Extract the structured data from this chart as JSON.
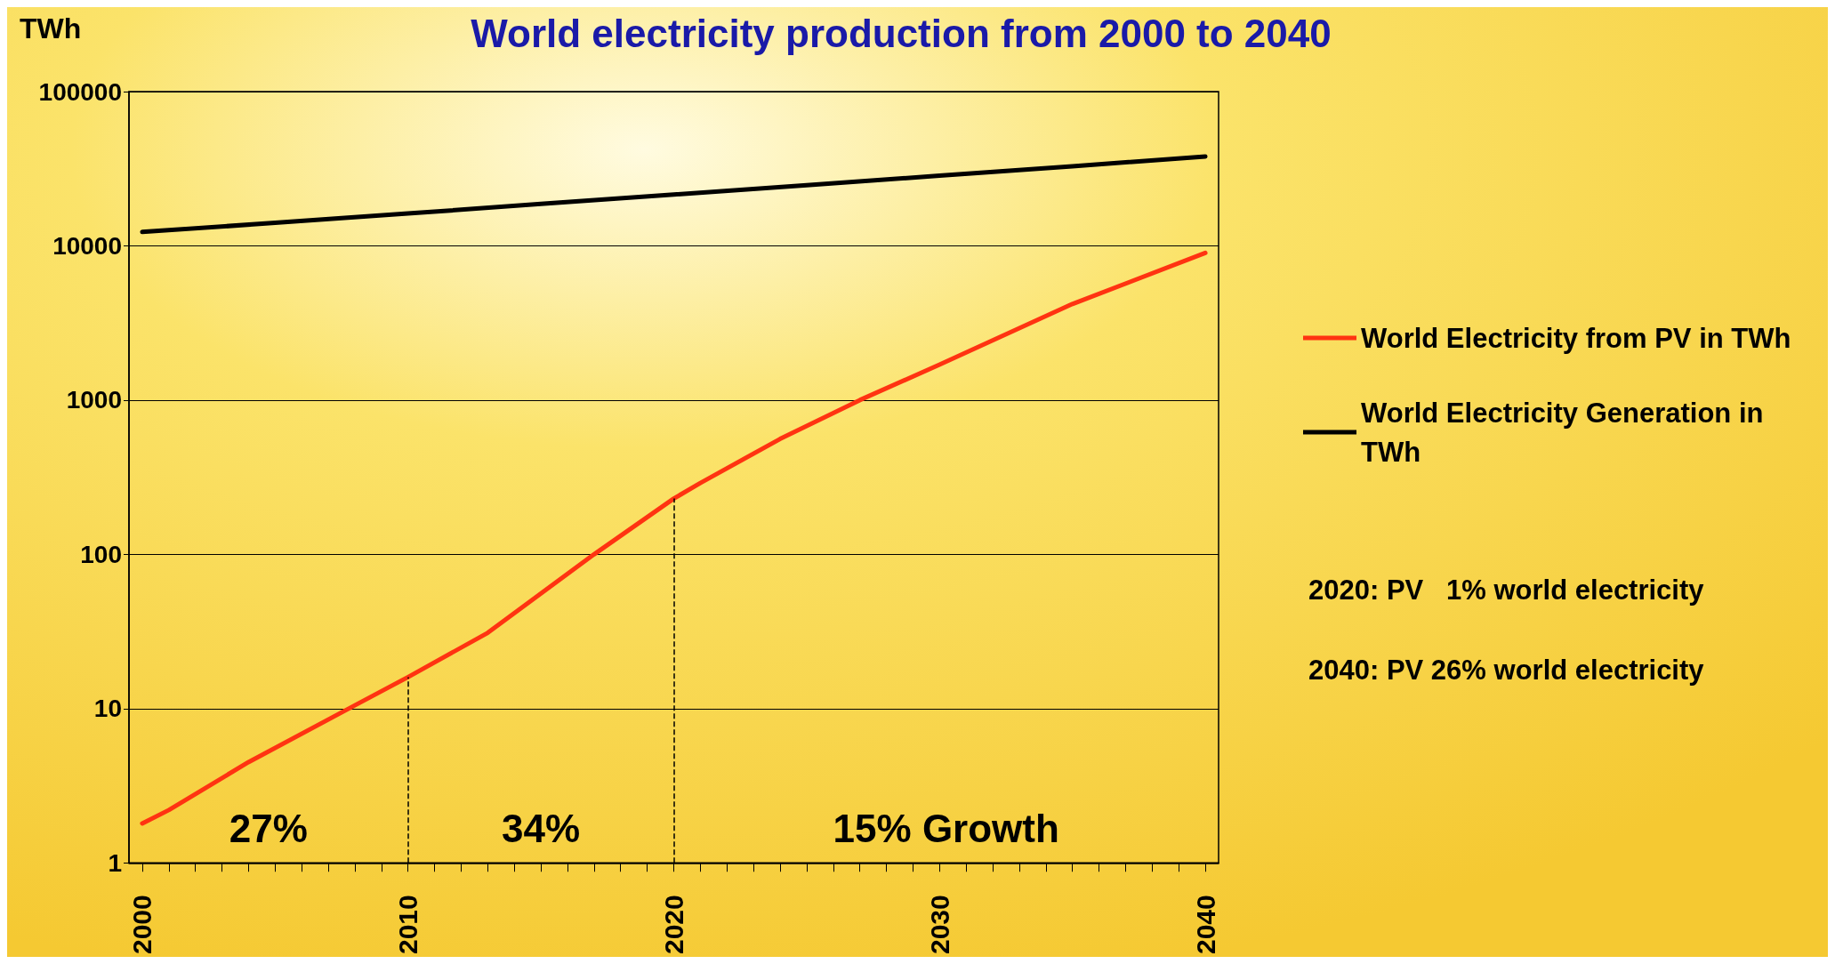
{
  "chart_data": {
    "type": "line",
    "title": "World electricity production from 2000 to 2040",
    "ylabel": "TWh",
    "log": "y",
    "grid": "y",
    "legend": "right",
    "marker": "none",
    "line_style": "solid",
    "xlim": [
      1999.5,
      2040.5
    ],
    "xticks": [
      2000,
      {
        "value": 2001,
        "label": null
      },
      {
        "value": 2002,
        "label": null
      },
      {
        "value": 2003,
        "label": null
      },
      {
        "value": 2004,
        "label": null
      },
      {
        "value": 2005,
        "label": null
      },
      {
        "value": 2006,
        "label": null
      },
      {
        "value": 2007,
        "label": null
      },
      {
        "value": 2008,
        "label": null
      },
      {
        "value": 2009,
        "label": null
      },
      2010,
      {
        "value": 2011,
        "label": null
      },
      {
        "value": 2012,
        "label": null
      },
      {
        "value": 2013,
        "label": null
      },
      {
        "value": 2014,
        "label": null
      },
      {
        "value": 2015,
        "label": null
      },
      {
        "value": 2016,
        "label": null
      },
      {
        "value": 2017,
        "label": null
      },
      {
        "value": 2018,
        "label": null
      },
      {
        "value": 2019,
        "label": null
      },
      2020,
      {
        "value": 2021,
        "label": null
      },
      {
        "value": 2022,
        "label": null
      },
      {
        "value": 2023,
        "label": null
      },
      {
        "value": 2024,
        "label": null
      },
      {
        "value": 2025,
        "label": null
      },
      {
        "value": 2026,
        "label": null
      },
      {
        "value": 2027,
        "label": null
      },
      {
        "value": 2028,
        "label": null
      },
      {
        "value": 2029,
        "label": null
      },
      2030,
      {
        "value": 2031,
        "label": null
      },
      {
        "value": 2032,
        "label": null
      },
      {
        "value": 2033,
        "label": null
      },
      {
        "value": 2034,
        "label": null
      },
      {
        "value": 2035,
        "label": null
      },
      {
        "value": 2036,
        "label": null
      },
      {
        "value": 2037,
        "label": null
      },
      {
        "value": 2038,
        "label": null
      },
      {
        "value": 2039,
        "label": null
      },
      2040
    ],
    "ylim": [
      1,
      100000
    ],
    "yticks": [
      1,
      10,
      100,
      1000,
      10000,
      100000
    ],
    "series": [
      {
        "name": "World Electricity from PV in TWh",
        "color": "#ff3311",
        "x": [
          2000,
          2001,
          2004,
          2008,
          2010,
          2013,
          2017,
          2020,
          2021,
          2024,
          2027,
          2030,
          2035,
          2040
        ],
        "values": [
          1.8,
          2.2,
          4.5,
          10.5,
          16,
          31,
          100,
          230,
          290,
          560,
          1000,
          1700,
          4200,
          9000
        ]
      },
      {
        "name": "World Electricity Generation in TWh",
        "color": "#000000",
        "x": [
          2000,
          2005,
          2010,
          2015,
          2020,
          2025,
          2030,
          2035,
          2040
        ],
        "values": [
          12300,
          14100,
          16200,
          18700,
          21500,
          24700,
          28500,
          32800,
          38000
        ]
      }
    ],
    "ref_lines": [
      {
        "axis": "x",
        "value": 2010,
        "color": "#000000",
        "line_style": "dashed"
      },
      {
        "axis": "x",
        "value": 2020,
        "color": "#000000",
        "line_style": "dashed"
      }
    ],
    "annotations": [
      "27%",
      "34%",
      "15% Growth",
      "2020: PV   1% world electricity",
      "2040: PV 26% world electricity"
    ]
  }
}
